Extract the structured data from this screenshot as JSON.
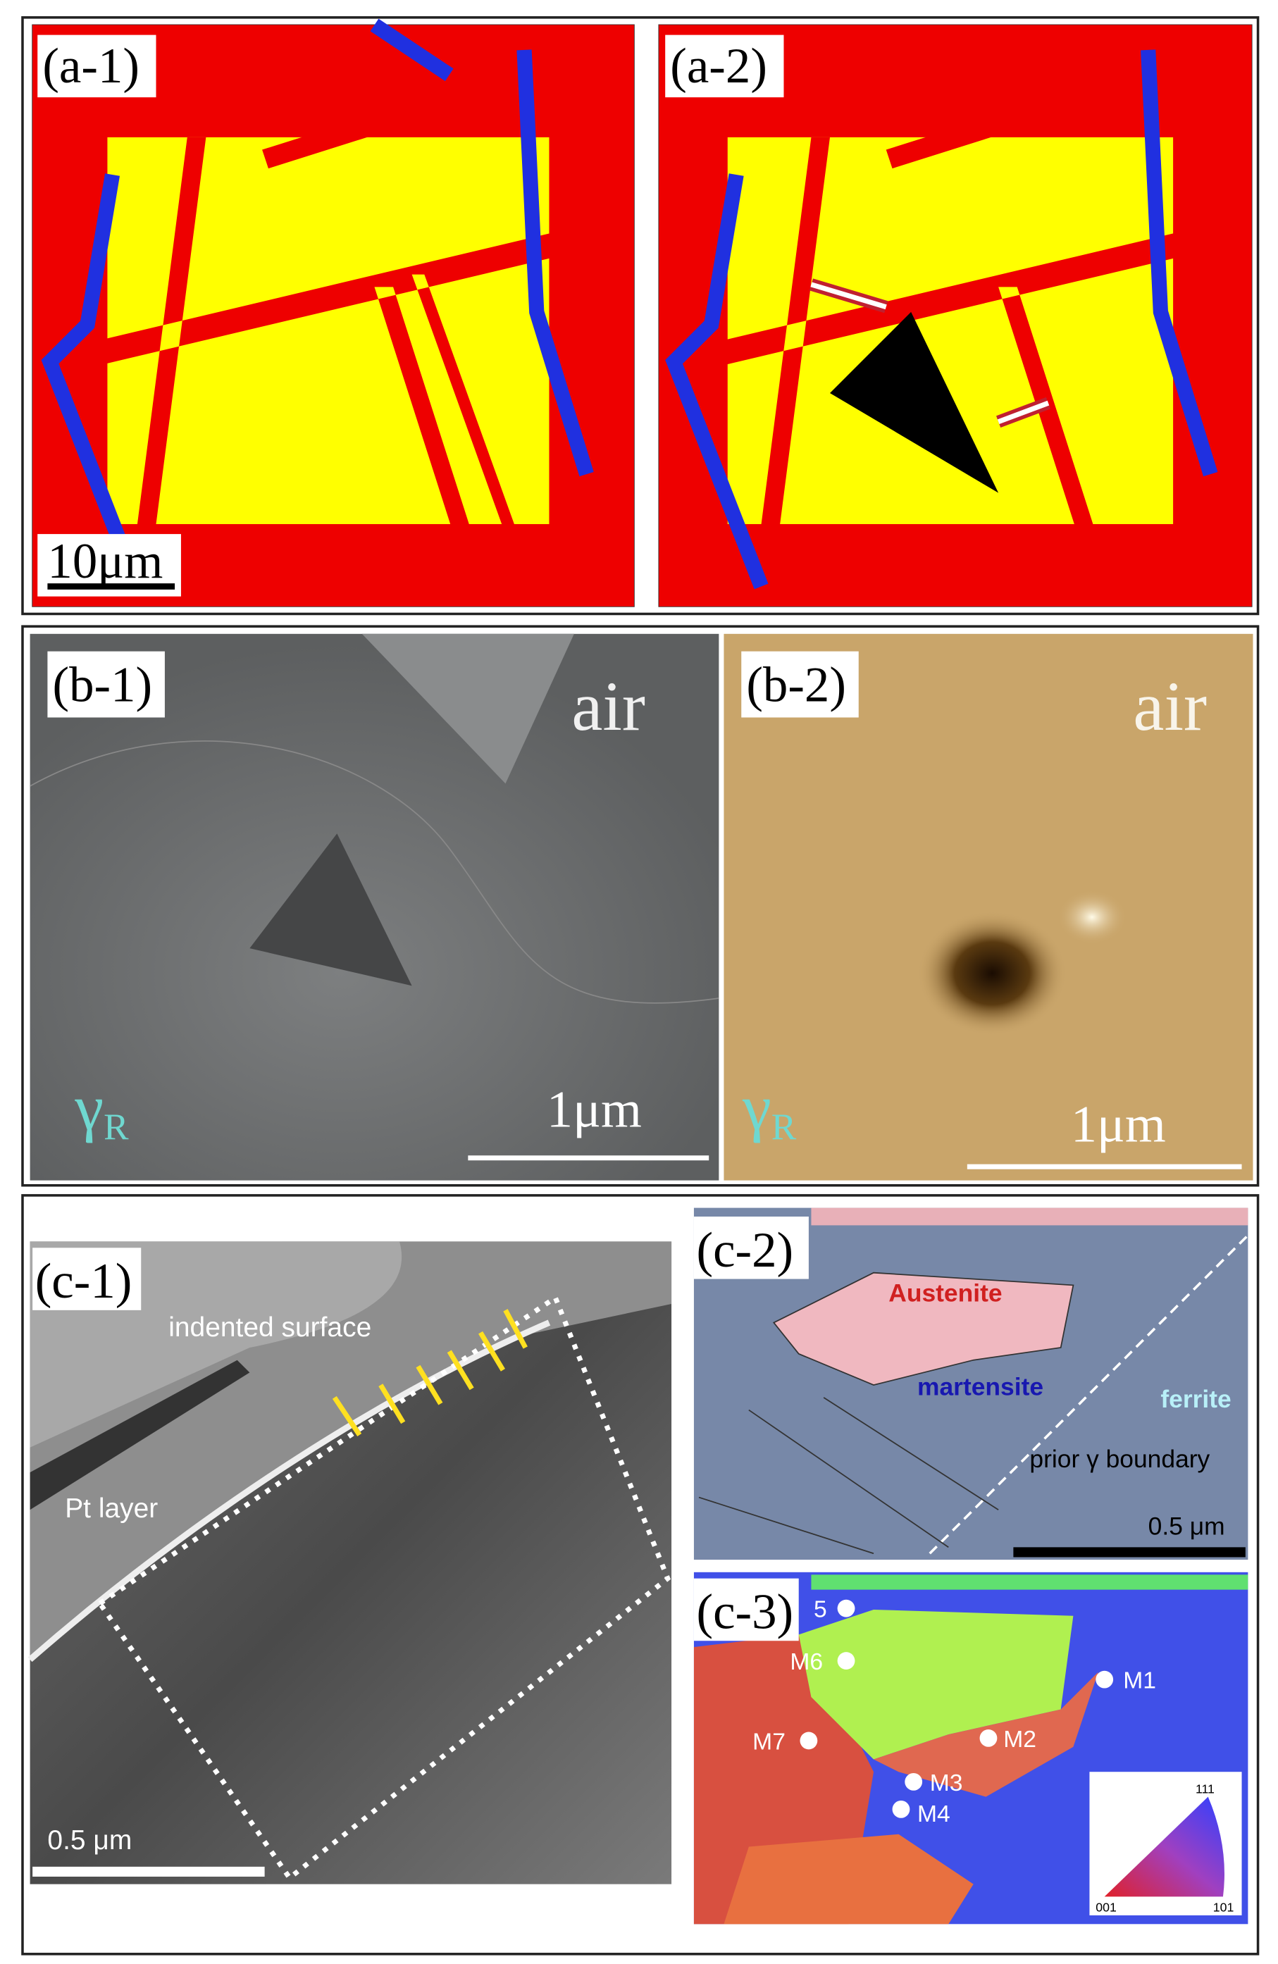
{
  "panels": {
    "a1": {
      "label": "(a-1)",
      "scale_bar": "10μm"
    },
    "a2": {
      "label": "(a-2)"
    },
    "b1": {
      "label": "(b-1)",
      "medium": "air",
      "phase": "γ",
      "phase_subscript": "R",
      "scale_bar": "1μm"
    },
    "b2": {
      "label": "(b-2)",
      "medium": "air",
      "phase": "γ",
      "phase_subscript": "R",
      "scale_bar": "1μm"
    },
    "c1": {
      "label": "(c-1)",
      "surface": "indented surface",
      "layer": "Pt layer",
      "scale_bar": "0.5 μm"
    },
    "c2": {
      "label": "(c-2)",
      "phases": [
        "Austenite",
        "martensite",
        "ferrite"
      ],
      "boundary": "prior γ boundary",
      "scale_bar": "0.5 μm"
    },
    "c3": {
      "label": "(c-3)",
      "points": [
        "5",
        "M6",
        "M1",
        "M7",
        "M2",
        "M3",
        "M4"
      ],
      "legend": [
        "111",
        "001",
        "101"
      ]
    }
  }
}
